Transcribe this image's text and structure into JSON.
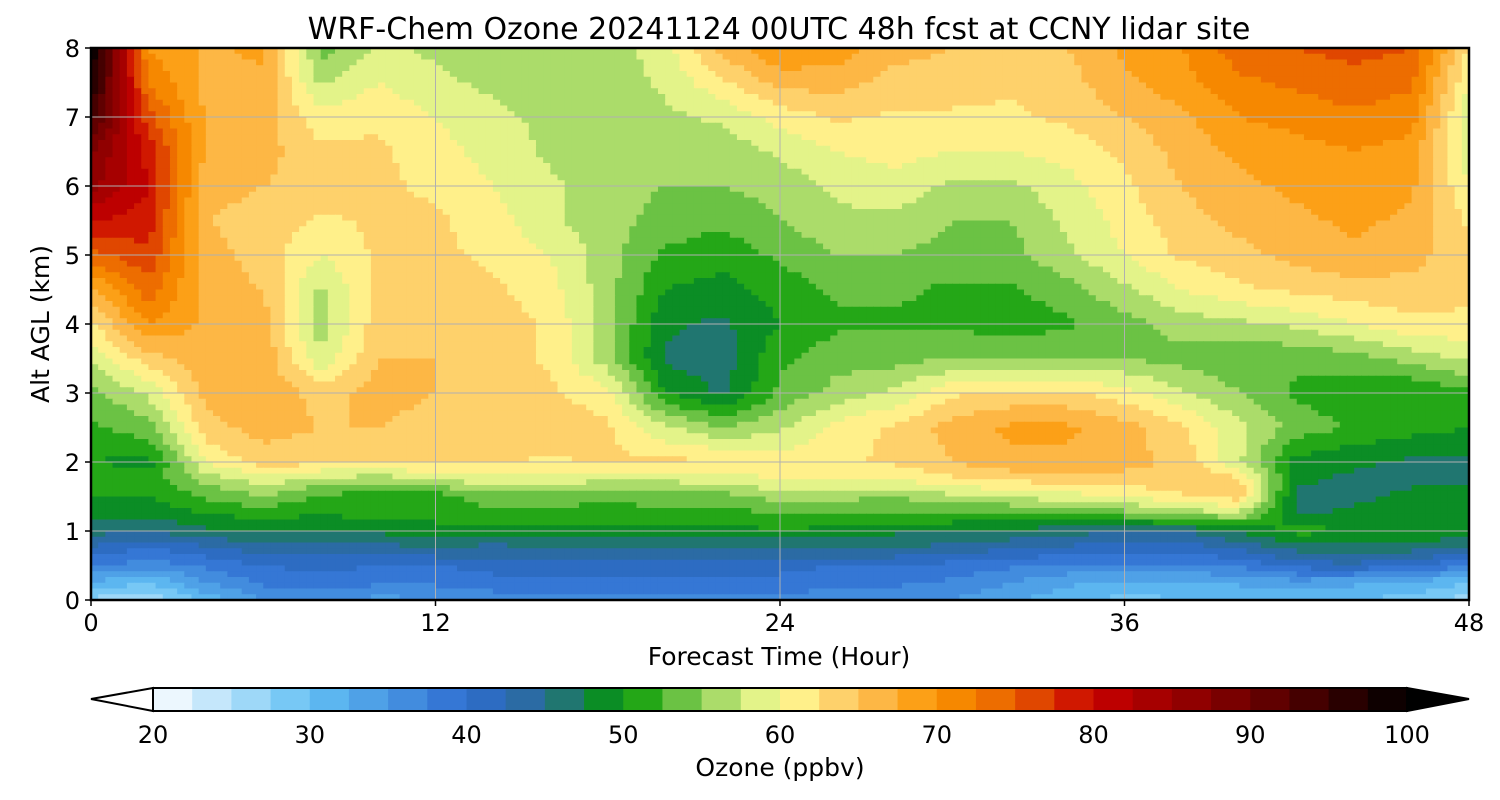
{
  "chart_data": {
    "type": "heatmap",
    "title": "WRF-Chem Ozone  20241124 00UTC 48h fcst at CCNY lidar site",
    "xlabel": "Forecast Time (Hour)",
    "ylabel": "Alt AGL (km)",
    "xlim": [
      0,
      48
    ],
    "ylim": [
      0,
      8
    ],
    "xticks": [
      0,
      12,
      24,
      36,
      48
    ],
    "yticks": [
      0,
      1,
      2,
      3,
      4,
      5,
      6,
      7,
      8
    ],
    "grid": true,
    "x_hours": [
      0,
      2,
      4,
      6,
      8,
      10,
      12,
      14,
      16,
      18,
      20,
      22,
      24,
      26,
      28,
      30,
      32,
      34,
      36,
      38,
      40,
      42,
      44,
      46,
      48
    ],
    "y_km": [
      0,
      0.25,
      0.5,
      0.75,
      1,
      1.25,
      1.5,
      1.75,
      2,
      2.5,
      3,
      3.5,
      4,
      4.5,
      5,
      5.5,
      6,
      6.5,
      7,
      7.5,
      8
    ],
    "z_ppbv": [
      [
        27,
        25,
        31,
        35,
        36,
        34,
        35,
        36,
        37,
        36,
        36,
        37,
        37,
        36,
        36,
        35,
        33,
        31,
        29,
        30,
        30,
        31,
        30,
        29,
        26
      ],
      [
        32,
        30,
        35,
        38,
        39,
        38,
        38,
        39,
        39,
        39,
        39,
        39,
        39,
        38,
        38,
        37,
        35,
        33,
        32,
        32,
        33,
        34,
        33,
        32,
        30
      ],
      [
        38,
        36,
        38,
        40,
        41,
        40,
        40,
        41,
        41,
        41,
        41,
        41,
        41,
        40,
        40,
        39,
        38,
        37,
        37,
        37,
        38,
        41,
        42,
        40,
        38
      ],
      [
        42,
        40,
        42,
        44,
        44,
        44,
        45,
        44,
        45,
        45,
        45,
        45,
        45,
        45,
        45,
        44,
        43,
        42,
        41,
        41,
        43,
        46,
        47,
        46,
        45
      ],
      [
        46,
        45,
        47,
        48,
        48,
        48,
        49,
        49,
        49,
        49,
        49,
        49,
        50,
        49,
        48,
        48,
        47,
        46,
        45,
        45,
        48,
        51,
        50,
        50,
        49
      ],
      [
        48,
        48,
        50,
        51,
        50,
        51,
        51,
        52,
        52,
        51,
        52,
        51,
        53,
        52,
        52,
        52,
        52,
        53,
        54,
        56,
        57,
        47,
        48,
        49,
        48
      ],
      [
        50,
        50,
        53,
        55,
        52,
        51,
        51,
        54,
        54,
        53,
        54,
        54,
        56,
        56,
        55,
        57,
        58,
        59,
        60,
        62,
        64,
        47,
        47,
        48,
        48
      ],
      [
        52,
        51,
        56,
        59,
        57,
        56,
        58,
        59,
        59,
        58,
        58,
        59,
        60,
        60,
        60,
        62,
        63,
        64,
        64,
        65,
        63,
        48,
        47,
        47,
        47
      ],
      [
        50,
        49,
        60,
        64,
        63,
        63,
        63,
        63,
        62,
        63,
        63,
        63,
        61,
        62,
        63,
        65,
        67,
        67,
        66,
        64,
        58,
        49,
        48,
        47,
        47
      ],
      [
        52,
        54,
        64,
        66,
        65,
        65,
        64,
        64,
        64,
        63,
        58,
        55,
        57,
        61,
        63,
        66,
        68,
        68,
        66,
        63,
        58,
        54,
        52,
        51,
        50
      ],
      [
        54,
        58,
        66,
        67,
        64,
        66,
        65,
        64,
        63,
        61,
        50,
        47,
        53,
        56,
        58,
        62,
        63,
        63,
        61,
        58,
        55,
        52,
        51,
        50,
        52
      ],
      [
        58,
        64,
        67,
        67,
        58,
        65,
        65,
        64,
        62,
        56,
        47,
        46,
        52,
        54,
        54,
        55,
        55,
        55,
        55,
        54,
        53,
        53,
        54,
        56,
        58
      ],
      [
        62,
        70,
        67,
        66,
        56,
        64,
        65,
        64,
        62,
        56,
        48,
        47,
        50,
        52,
        52,
        52,
        51,
        52,
        54,
        56,
        57,
        58,
        60,
        62,
        62
      ],
      [
        67,
        74,
        66,
        65,
        57,
        63,
        64,
        63,
        61,
        56,
        50,
        49,
        51,
        53,
        53,
        52,
        52,
        54,
        57,
        60,
        62,
        63,
        64,
        64,
        63
      ],
      [
        74,
        77,
        66,
        64,
        60,
        63,
        63,
        62,
        60,
        56,
        52,
        51,
        53,
        55,
        55,
        54,
        54,
        57,
        60,
        63,
        64,
        66,
        67,
        66,
        63
      ],
      [
        80,
        79,
        65,
        64,
        62,
        63,
        63,
        61,
        58,
        56,
        54,
        53,
        55,
        57,
        57,
        55,
        55,
        58,
        61,
        64,
        66,
        67,
        68,
        67,
        62
      ],
      [
        86,
        80,
        66,
        65,
        64,
        63,
        62,
        60,
        58,
        56,
        55,
        55,
        56,
        58,
        59,
        57,
        57,
        59,
        62,
        65,
        67,
        68,
        69,
        68,
        60
      ],
      [
        88,
        79,
        67,
        66,
        63,
        63,
        61,
        59,
        57,
        56,
        56,
        56,
        58,
        60,
        61,
        60,
        60,
        61,
        63,
        66,
        68,
        69,
        70,
        69,
        58
      ],
      [
        94,
        76,
        67,
        66,
        61,
        62,
        60,
        58,
        57,
        56,
        57,
        58,
        61,
        63,
        62,
        62,
        62,
        63,
        65,
        67,
        70,
        71,
        72,
        71,
        58
      ],
      [
        98,
        72,
        67,
        67,
        57,
        60,
        58,
        57,
        56,
        56,
        58,
        62,
        66,
        66,
        64,
        64,
        63,
        64,
        67,
        69,
        72,
        73,
        74,
        73,
        60
      ],
      [
        100,
        70,
        67,
        68,
        54,
        58,
        57,
        56,
        56,
        56,
        59,
        66,
        70,
        69,
        66,
        65,
        64,
        65,
        68,
        70,
        74,
        75,
        76,
        75,
        62
      ]
    ],
    "colorbar": {
      "label": "Ozone  (ppbv)",
      "min": 20,
      "max": 100,
      "ticks": [
        20,
        30,
        40,
        50,
        60,
        70,
        80,
        90,
        100
      ],
      "extend": "both",
      "colors": {
        "20": "#ffffff",
        "30": "#63c0f4",
        "40": "#2e6dd1",
        "45": "#2a6a95",
        "50": "#009900",
        "55": "#8fd05a",
        "60": "#ffff99",
        "65": "#fec25c",
        "70": "#fb9500",
        "75": "#e85f00",
        "80": "#c80000",
        "90": "#6e0000",
        "100": "#000000"
      }
    }
  }
}
